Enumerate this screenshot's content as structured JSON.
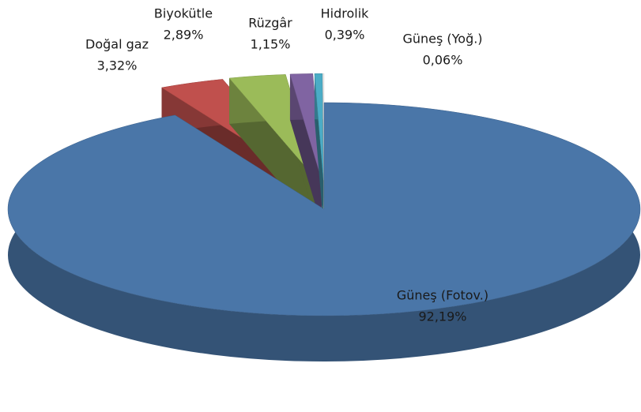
{
  "chart_data": {
    "type": "pie3d",
    "categories": [
      "Güneş (Fotov.)",
      "Doğal gaz",
      "Biyokütle",
      "Rüzgâr",
      "Hidrolik",
      "Güneş (Yoğ.)"
    ],
    "values": [
      92.19,
      3.32,
      2.89,
      1.15,
      0.39,
      0.06
    ],
    "value_labels": [
      "92,19%",
      "3,32%",
      "2,89%",
      "1,15%",
      "0,39%",
      "0,06%"
    ],
    "colors": [
      "#4a76a8",
      "#c0504d",
      "#9bbb59",
      "#8064a2",
      "#4bacc6",
      "#f0f0f0"
    ]
  }
}
